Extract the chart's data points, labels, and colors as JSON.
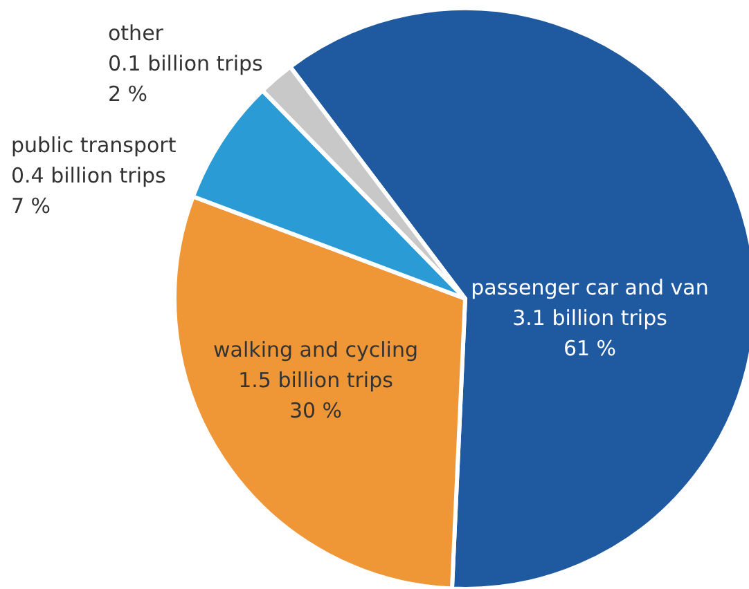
{
  "chart_data": {
    "type": "pie",
    "categories": [
      "passenger car and van",
      "walking and cycling",
      "public transport",
      "other"
    ],
    "values": [
      61,
      30,
      7,
      2
    ],
    "value_labels": [
      "3.1 billion trips\n61 %",
      "1.5 billion trips\n30 %",
      "0.4 billion trips\n7 %",
      "0.1 billion trips\n2 %"
    ],
    "colors": [
      "#1f5aa0",
      "#ef9637",
      "#2b9bd6",
      "#c8c8c8"
    ],
    "legend": false
  }
}
